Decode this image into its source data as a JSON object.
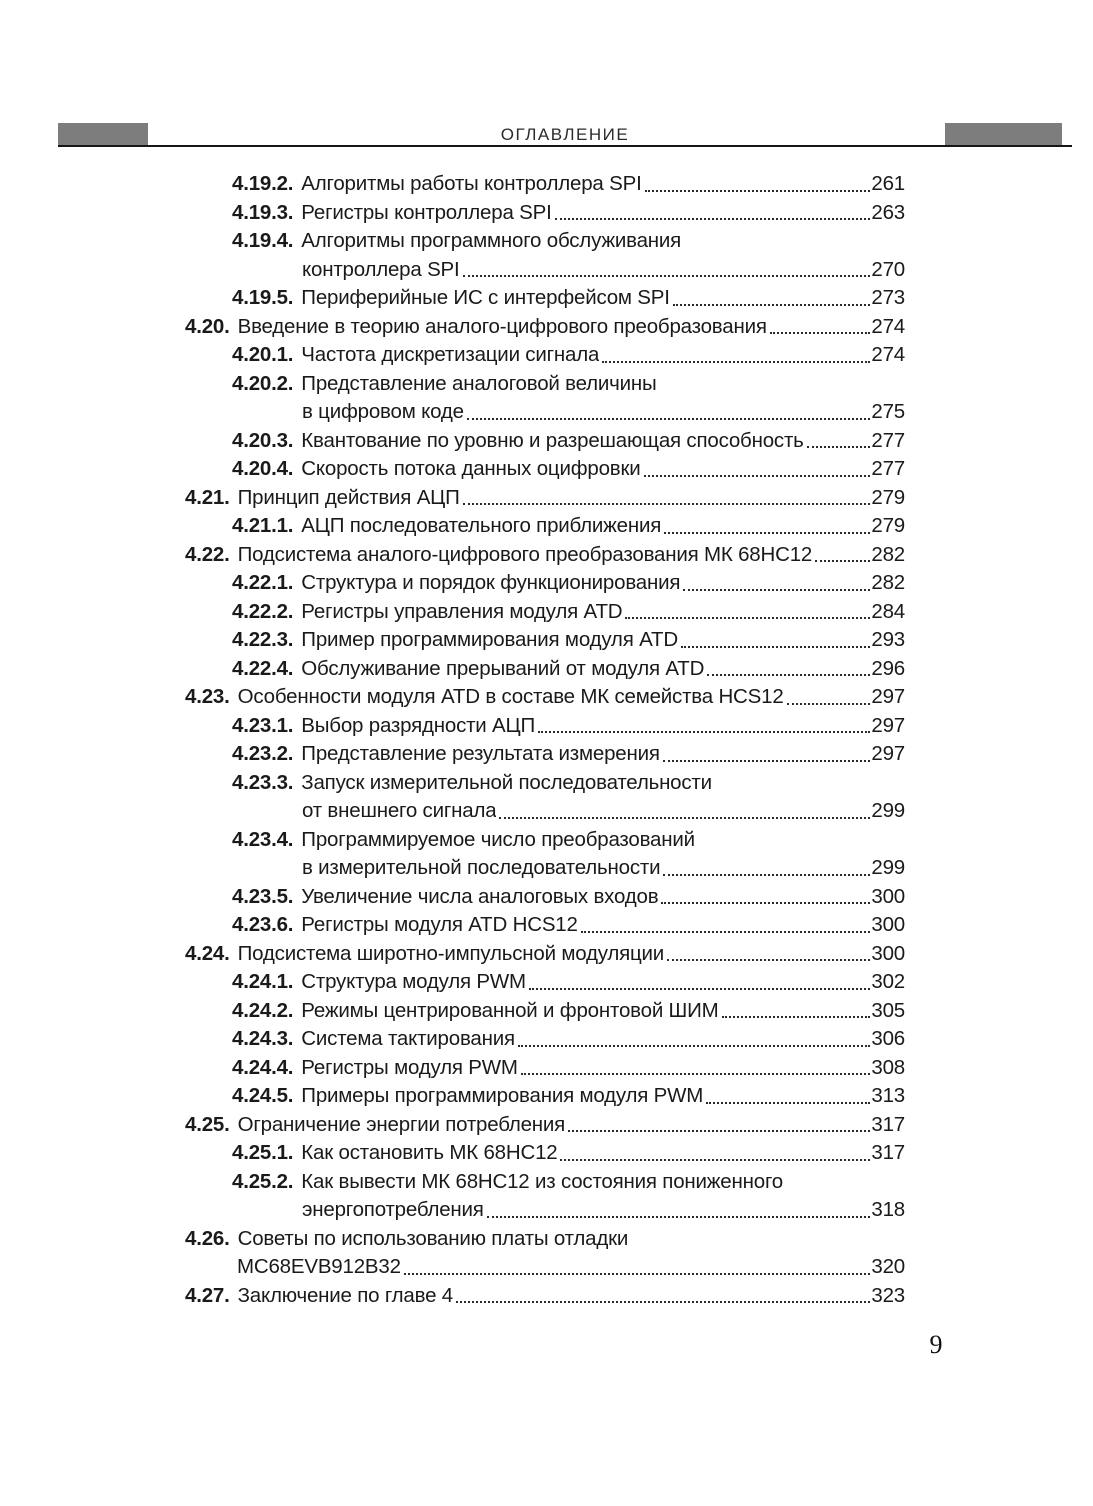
{
  "header": {
    "title": "ОГЛАВЛЕНИЕ"
  },
  "footer": {
    "page_number": "9"
  },
  "colors": {
    "bar_gray": "#7d7d7d",
    "rule": "#161616",
    "text": "#1a1a1a"
  },
  "toc": {
    "entries": [
      {
        "num": "4.19.2.",
        "level": 3,
        "title": "Алгоритмы работы контроллера SPI",
        "page": "261"
      },
      {
        "num": "4.19.3.",
        "level": 3,
        "title": "Регистры контроллера SPI",
        "page": "263"
      },
      {
        "num": "4.19.4.",
        "level": 3,
        "title": "Алгоритмы программного обслуживания",
        "title2": "контроллера SPI",
        "page": "270"
      },
      {
        "num": "4.19.5.",
        "level": 3,
        "title": "Периферийные ИС с интерфейсом SPI",
        "page": "273"
      },
      {
        "num": "4.20.",
        "level": 2,
        "title": "Введение в теорию аналого-цифрового преобразования",
        "page": "274"
      },
      {
        "num": "4.20.1.",
        "level": 3,
        "title": "Частота дискретизации сигнала",
        "page": "274"
      },
      {
        "num": "4.20.2.",
        "level": 3,
        "title": "Представление аналоговой величины",
        "title2": "в цифровом коде",
        "page": "275"
      },
      {
        "num": "4.20.3.",
        "level": 3,
        "title": "Квантование по уровню и разрешающая способность",
        "page": "277"
      },
      {
        "num": "4.20.4.",
        "level": 3,
        "title": "Скорость потока данных оцифровки",
        "page": "277"
      },
      {
        "num": "4.21.",
        "level": 2,
        "title": "Принцип действия АЦП",
        "page": "279"
      },
      {
        "num": "4.21.1.",
        "level": 3,
        "title": "АЦП последовательного приближения",
        "page": "279"
      },
      {
        "num": "4.22.",
        "level": 2,
        "title": "Подсистема аналого-цифрового преобразования МК 68НС12",
        "page": "282"
      },
      {
        "num": "4.22.1.",
        "level": 3,
        "title": "Структура и порядок функционирования",
        "page": "282"
      },
      {
        "num": "4.22.2.",
        "level": 3,
        "title": "Регистры управления модуля ATD",
        "page": "284"
      },
      {
        "num": "4.22.3.",
        "level": 3,
        "title": "Пример программирования модуля ATD",
        "page": "293"
      },
      {
        "num": "4.22.4.",
        "level": 3,
        "title": "Обслуживание прерываний от модуля ATD",
        "page": "296"
      },
      {
        "num": "4.23.",
        "level": 2,
        "title": "Особенности модуля ATD в составе МК семейства HCS12",
        "page": "297"
      },
      {
        "num": "4.23.1.",
        "level": 3,
        "title": "Выбор разрядности АЦП",
        "page": "297"
      },
      {
        "num": "4.23.2.",
        "level": 3,
        "title": "Представление результата измерения",
        "page": "297"
      },
      {
        "num": "4.23.3.",
        "level": 3,
        "title": "Запуск измерительной последовательности",
        "title2": "от внешнего сигнала",
        "page": "299"
      },
      {
        "num": "4.23.4.",
        "level": 3,
        "title": "Программируемое число преобразований",
        "title2": "в измерительной последовательности",
        "page": "299"
      },
      {
        "num": "4.23.5.",
        "level": 3,
        "title": "Увеличение числа аналоговых входов",
        "page": "300"
      },
      {
        "num": "4.23.6.",
        "level": 3,
        "title": "Регистры модуля ATD HCS12",
        "page": "300"
      },
      {
        "num": "4.24.",
        "level": 2,
        "title": "Подсистема широтно-импульсной модуляции",
        "page": "300"
      },
      {
        "num": "4.24.1.",
        "level": 3,
        "title": "Структура модуля PWM",
        "page": "302"
      },
      {
        "num": "4.24.2.",
        "level": 3,
        "title": "Режимы центрированной и фронтовой ШИМ",
        "page": "305"
      },
      {
        "num": "4.24.3.",
        "level": 3,
        "title": "Система тактирования",
        "page": "306"
      },
      {
        "num": "4.24.4.",
        "level": 3,
        "title": "Регистры модуля PWM",
        "page": "308"
      },
      {
        "num": "4.24.5.",
        "level": 3,
        "title": "Примеры программирования модуля PWM",
        "page": "313"
      },
      {
        "num": "4.25.",
        "level": 2,
        "title": "Ограничение энергии потребления",
        "page": "317"
      },
      {
        "num": "4.25.1.",
        "level": 3,
        "title": "Как остановить МК 68НС12",
        "page": "317"
      },
      {
        "num": "4.25.2.",
        "level": 3,
        "title": "Как вывести МК 68НС12 из состояния пониженного",
        "title2": "энергопотребления",
        "page": "318"
      },
      {
        "num": "4.26.",
        "level": 2,
        "title": "Советы по использованию платы отладки",
        "title2": "MC68EVB912B32",
        "page": "320"
      },
      {
        "num": "4.27.",
        "level": 2,
        "title": "Заключение по главе 4",
        "page": "323"
      }
    ]
  }
}
